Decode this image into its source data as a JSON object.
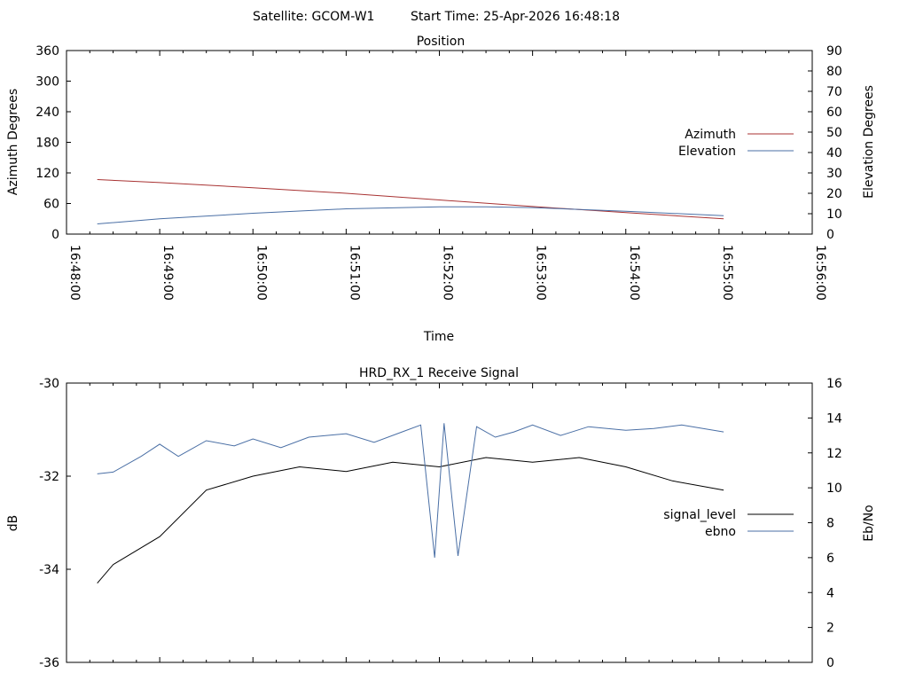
{
  "header": {
    "satellite_label": "Satellite: GCOM-W1",
    "start_time_label": "Start Time: 25-Apr-2026 16:48:18"
  },
  "chart_data": [
    {
      "type": "line",
      "title": "Position",
      "xlabel": "Time",
      "ylabel": "Azimuth Degrees",
      "y2label": "Elevation Degrees",
      "x_ticks": [
        "16:48:00",
        "16:49:00",
        "16:50:00",
        "16:51:00",
        "16:52:00",
        "16:53:00",
        "16:54:00",
        "16:55:00",
        "16:56:00"
      ],
      "xlim_minutes": [
        0,
        8
      ],
      "ylim": [
        0,
        360
      ],
      "y_ticks": [
        0,
        60,
        120,
        180,
        240,
        300,
        360
      ],
      "y2lim": [
        0,
        90
      ],
      "y2_ticks": [
        0,
        10,
        20,
        30,
        40,
        50,
        60,
        70,
        80,
        90
      ],
      "legend_position": "right",
      "series": [
        {
          "name": "Azimuth",
          "axis": "left",
          "color": "#a83232",
          "x_minutes": [
            0.33,
            1,
            2,
            3,
            4,
            5,
            6,
            7.05
          ],
          "values": [
            107,
            101,
            91,
            80,
            67,
            54,
            42,
            30
          ]
        },
        {
          "name": "Elevation",
          "axis": "right",
          "color": "#4a6fa5",
          "x_minutes": [
            0.33,
            1,
            2,
            3,
            4,
            4.5,
            5,
            6,
            7.05
          ],
          "values": [
            5,
            7.5,
            10.2,
            12.4,
            13.4,
            13.4,
            13,
            11.2,
            9
          ]
        }
      ]
    },
    {
      "type": "line",
      "title": "HRD_RX_1 Receive Signal",
      "xlabel": "",
      "ylabel": "dB",
      "y2label": "Eb/No",
      "ylim": [
        -36,
        -30
      ],
      "y_ticks": [
        -36,
        -34,
        -32,
        -30
      ],
      "y2lim": [
        0,
        16
      ],
      "y2_ticks": [
        0,
        2,
        4,
        6,
        8,
        10,
        12,
        14,
        16
      ],
      "xlim_minutes": [
        0,
        8
      ],
      "legend_position": "right",
      "series": [
        {
          "name": "signal_level",
          "axis": "left",
          "color": "#000000",
          "x_minutes": [
            0.33,
            0.5,
            1,
            1.5,
            2,
            2.5,
            3,
            3.5,
            4,
            4.5,
            5,
            5.5,
            6,
            6.5,
            7.05
          ],
          "values": [
            -34.3,
            -33.9,
            -33.3,
            -32.3,
            -32.0,
            -31.8,
            -31.9,
            -31.7,
            -31.8,
            -31.6,
            -31.7,
            -31.6,
            -31.8,
            -32.1,
            -32.3
          ]
        },
        {
          "name": "ebno",
          "axis": "right",
          "color": "#4a6fa5",
          "x_minutes": [
            0.33,
            0.5,
            0.8,
            1,
            1.2,
            1.5,
            1.8,
            2,
            2.3,
            2.6,
            3,
            3.3,
            3.6,
            3.8,
            3.95,
            4.05,
            4.2,
            4.4,
            4.6,
            4.8,
            5,
            5.3,
            5.6,
            6,
            6.3,
            6.6,
            7.05
          ],
          "values": [
            10.8,
            10.9,
            11.8,
            12.5,
            11.8,
            12.7,
            12.4,
            12.8,
            12.3,
            12.9,
            13.1,
            12.6,
            13.2,
            13.6,
            6.0,
            13.7,
            6.1,
            13.5,
            12.9,
            13.2,
            13.6,
            13.0,
            13.5,
            13.3,
            13.4,
            13.6,
            13.2
          ]
        }
      ]
    }
  ]
}
